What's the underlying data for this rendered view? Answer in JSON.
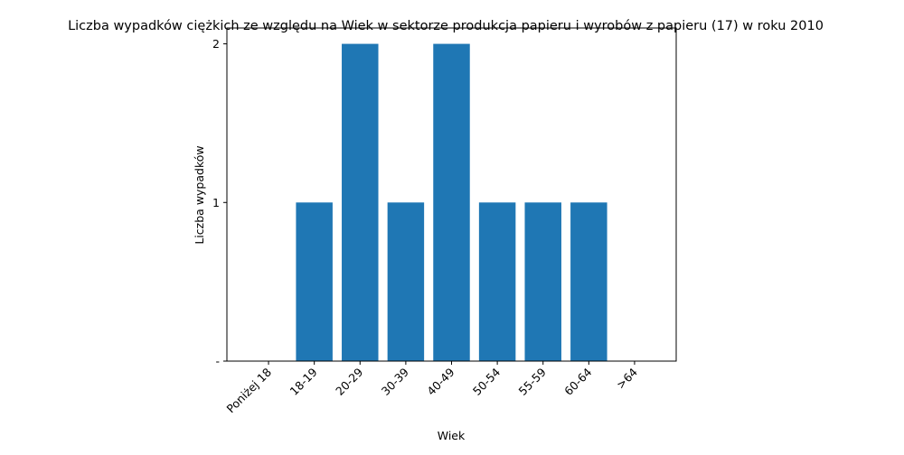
{
  "chart_data": {
    "type": "bar",
    "title": "Liczba wypadków ciężkich ze względu na Wiek w sektorze produkcja papieru i wyrobów z papieru  (17)   w roku 2010",
    "xlabel": "Wiek",
    "ylabel": "Liczba wypadków",
    "categories": [
      "Poniżej 18",
      "18-19",
      "20-29",
      "30-39",
      "40-49",
      "50-54",
      "55-59",
      "60-64",
      ">64"
    ],
    "values": [
      0,
      1,
      2,
      1,
      2,
      1,
      1,
      1,
      0
    ],
    "ylim": [
      0,
      2.1
    ],
    "yticks": [
      0,
      1,
      2
    ],
    "ytick_labels": [
      "-",
      "1",
      "2"
    ],
    "bar_color": "#1f77b4",
    "grid": false,
    "legend": "none"
  }
}
